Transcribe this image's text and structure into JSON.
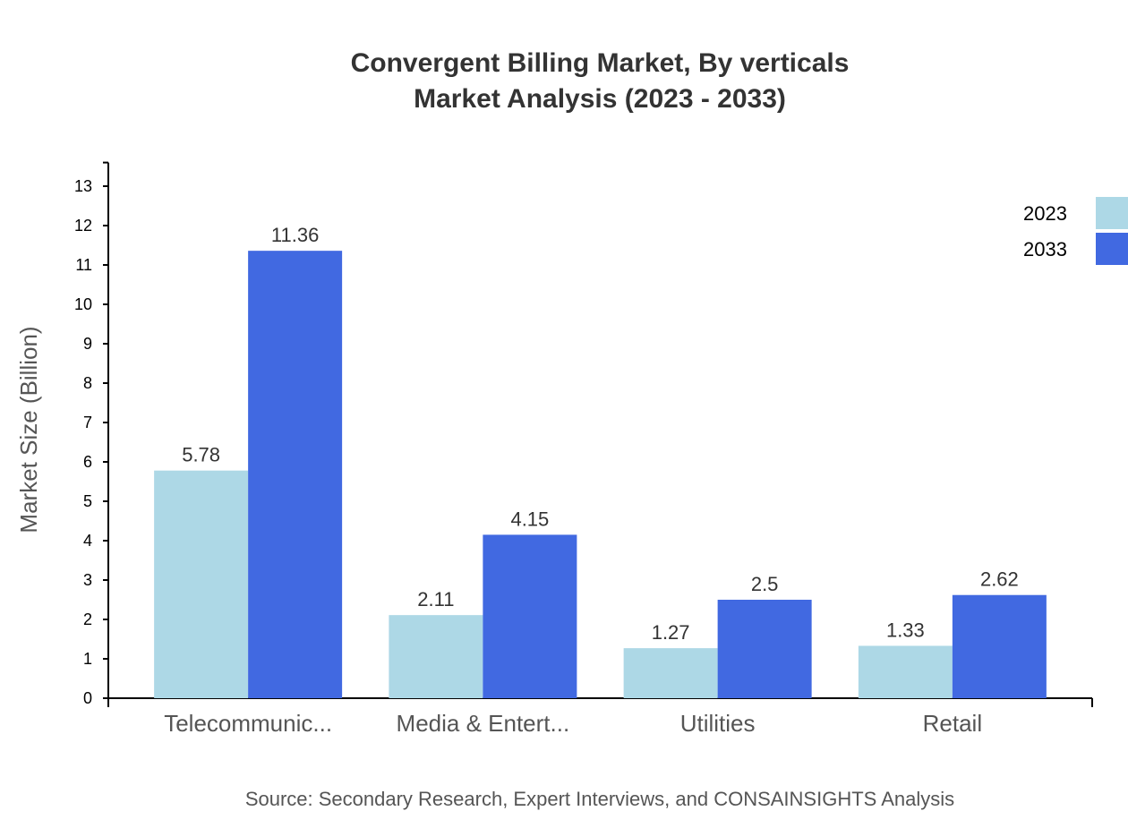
{
  "chart_data": {
    "type": "bar",
    "title": "Convergent Billing Market, By verticals",
    "subtitle": "Market Analysis (2023 - 2033)",
    "xlabel": "",
    "ylabel": "Market Size (Billion)",
    "ylim": [
      0,
      13.6
    ],
    "yticks": [
      0,
      1,
      2,
      3,
      4,
      5,
      6,
      7,
      8,
      9,
      10,
      11,
      12,
      13
    ],
    "categories": [
      "Telecommunic...",
      "Media & Entert...",
      "Utilities",
      "Retail"
    ],
    "series": [
      {
        "name": "2023",
        "color": "#add8e6",
        "values": [
          5.78,
          2.11,
          1.27,
          1.33
        ]
      },
      {
        "name": "2033",
        "color": "#4169e1",
        "values": [
          11.36,
          4.15,
          2.5,
          2.62
        ]
      }
    ],
    "legend_position": "top-right",
    "grid": false,
    "source": "Source: Secondary Research, Expert Interviews, and CONSAINSIGHTS Analysis"
  }
}
